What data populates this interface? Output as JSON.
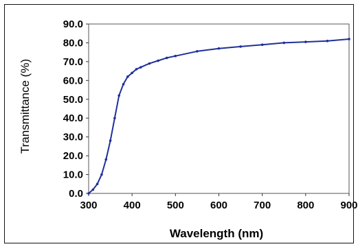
{
  "chart_data": {
    "type": "line",
    "title": "",
    "xlabel": "Wavelength (nm)",
    "ylabel": "Transmittance (%)",
    "xlim": [
      300,
      900
    ],
    "ylim": [
      0,
      90
    ],
    "x_ticks": [
      300,
      400,
      500,
      600,
      700,
      800,
      900
    ],
    "x_tick_labels": [
      "300",
      "400",
      "500",
      "600",
      "700",
      "800",
      "900"
    ],
    "y_ticks": [
      0,
      10,
      20,
      30,
      40,
      50,
      60,
      70,
      80,
      90
    ],
    "y_tick_labels": [
      "0.0",
      "10.0",
      "20.0",
      "30.0",
      "40.0",
      "50.0",
      "60.0",
      "70.0",
      "80.0",
      "90.0"
    ],
    "grid": false,
    "legend": "none",
    "series": [
      {
        "color": "#1f2f9a",
        "x": [
          300,
          310,
          320,
          330,
          340,
          350,
          360,
          370,
          380,
          390,
          400,
          410,
          420,
          440,
          460,
          480,
          500,
          550,
          600,
          650,
          700,
          750,
          800,
          850,
          900
        ],
        "y": [
          0,
          2,
          5,
          10,
          18,
          28,
          40,
          52,
          58,
          62,
          64,
          66,
          67,
          69,
          70.5,
          72,
          73,
          75.5,
          77,
          78,
          79,
          80,
          80.5,
          81,
          82
        ]
      }
    ]
  }
}
